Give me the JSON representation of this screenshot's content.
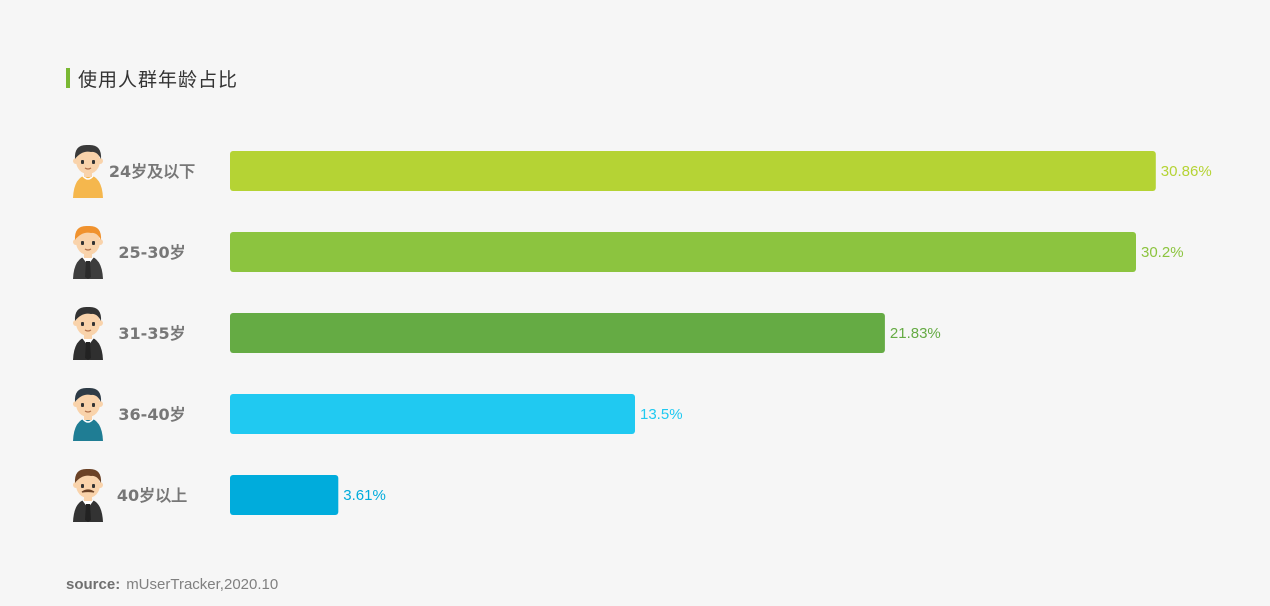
{
  "chart_data": {
    "type": "bar",
    "orientation": "horizontal",
    "title": "使用人群年龄占比",
    "categories": [
      "24岁及以下",
      "25-30岁",
      "31-35岁",
      "36-40岁",
      "40岁以上"
    ],
    "values": [
      30.86,
      30.2,
      21.83,
      13.5,
      3.61
    ],
    "value_labels": [
      "30.86%",
      "30.2%",
      "21.83%",
      "13.5%",
      "3.61%"
    ],
    "colors": [
      "#b5d334",
      "#8cc43f",
      "#65ab44",
      "#20c9f1",
      "#00acdc"
    ],
    "avatar_icons": [
      "avatar-yellow-shirt-icon",
      "avatar-orange-hair-suit-icon",
      "avatar-dark-suit-icon",
      "avatar-teal-shirt-icon",
      "avatar-mustache-suit-icon"
    ],
    "grid": false,
    "legend": "none"
  },
  "source": {
    "label": "source:",
    "text": "mUserTracker,2020.10"
  }
}
